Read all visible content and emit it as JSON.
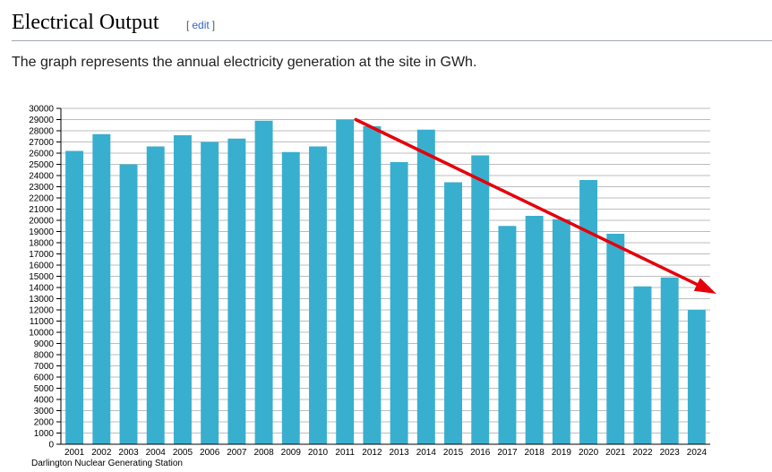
{
  "section": {
    "title": "Electrical Output",
    "edit_open": "[",
    "edit_label": "edit",
    "edit_close": "]"
  },
  "intro_text": "The graph represents the annual electricity generation at the site in GWh.",
  "chart_data": {
    "type": "bar",
    "categories": [
      "2001",
      "2002",
      "2003",
      "2004",
      "2005",
      "2006",
      "2007",
      "2008",
      "2009",
      "2010",
      "2011",
      "2012",
      "2013",
      "2014",
      "2015",
      "2016",
      "2017",
      "2018",
      "2019",
      "2020",
      "2021",
      "2022",
      "2023",
      "2024"
    ],
    "values": [
      26200,
      27700,
      25000,
      26600,
      27600,
      27000,
      27300,
      28900,
      26100,
      26600,
      29000,
      28400,
      25200,
      28100,
      23400,
      25800,
      19500,
      20400,
      20100,
      23600,
      18800,
      14100,
      14900,
      12000
    ],
    "ylim": [
      0,
      30000
    ],
    "ytick_step": 1000,
    "grid": true,
    "bar_color": "#38afce",
    "caption": "Darlington Nuclear Generating Station",
    "annotation": {
      "type": "arrow",
      "color": "#e5000a",
      "from": {
        "x": "2011",
        "y": 29000
      },
      "to": {
        "x": "2024",
        "y": 12000
      }
    }
  }
}
